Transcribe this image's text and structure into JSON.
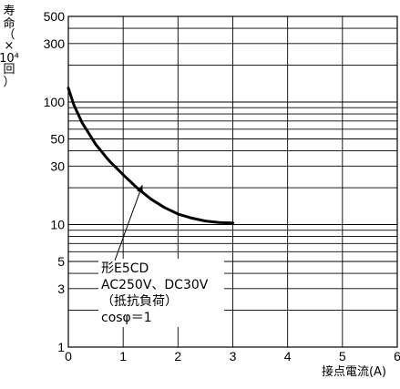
{
  "chart_data": {
    "type": "line",
    "x_scale": "linear",
    "y_scale": "log",
    "xlim": [
      0,
      6
    ],
    "ylim": [
      1,
      500
    ],
    "x_ticks": [
      0,
      1,
      2,
      3,
      4,
      5,
      6
    ],
    "y_ticks": [
      1,
      3,
      5,
      10,
      30,
      50,
      100,
      300,
      500
    ],
    "y_tick_labels": [
      "1",
      "3",
      "5",
      "10",
      "30",
      "50",
      "100",
      "300",
      "500"
    ],
    "x_tick_labels": [
      "0",
      "1",
      "2",
      "3",
      "4",
      "5",
      "6"
    ],
    "grid": true,
    "ylabel_lines": [
      "寿",
      "命",
      "（",
      "×",
      "10⁴",
      "回",
      "）"
    ],
    "xlabel": "接点電流(A)",
    "series": [
      {
        "x": [
          0.0,
          0.1,
          0.25,
          0.5,
          0.75,
          1.0,
          1.25,
          1.5,
          1.75,
          2.0,
          2.25,
          2.5,
          2.75,
          3.0
        ],
        "y": [
          130,
          95,
          68,
          45,
          33,
          25.5,
          20,
          16.2,
          13.8,
          12.2,
          11.3,
          10.7,
          10.4,
          10.3
        ],
        "color": "#000000"
      }
    ],
    "annotation": {
      "lines": [
        "形E5CD",
        "AC250V、DC30V",
        "（抵抗負荷）",
        "cosφ＝1"
      ],
      "pointer_target": [
        1.35,
        21
      ]
    }
  }
}
